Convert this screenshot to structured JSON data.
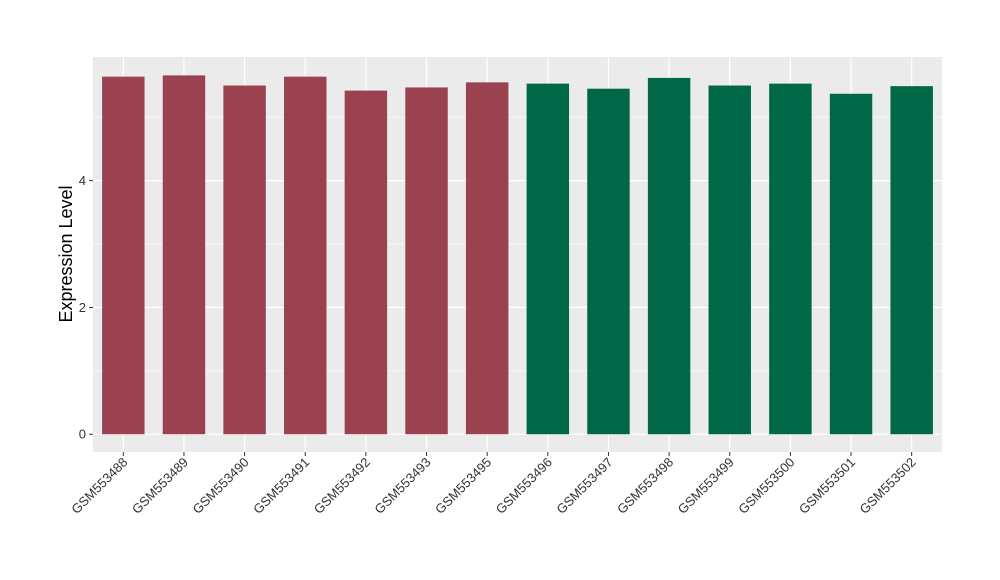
{
  "chart_data": {
    "type": "bar",
    "title": "",
    "xlabel": "",
    "ylabel": "Expression Level",
    "ylim": [
      -0.28,
      5.95
    ],
    "yticks": [
      0,
      2,
      4
    ],
    "grid": true,
    "legend": "none",
    "categories": [
      "GSM553488",
      "GSM553489",
      "GSM553490",
      "GSM553491",
      "GSM553492",
      "GSM553493",
      "GSM553495",
      "GSM553496",
      "GSM553497",
      "GSM553498",
      "GSM553499",
      "GSM553500",
      "GSM553501",
      "GSM553502"
    ],
    "values": [
      5.64,
      5.66,
      5.5,
      5.64,
      5.42,
      5.47,
      5.55,
      5.53,
      5.45,
      5.62,
      5.5,
      5.53,
      5.37,
      5.49
    ],
    "bar_colors": [
      "#9a4250",
      "#9a4250",
      "#9a4250",
      "#9a4250",
      "#9a4250",
      "#9a4250",
      "#9a4250",
      "#006847",
      "#006847",
      "#006847",
      "#006847",
      "#006847",
      "#006847",
      "#006847"
    ],
    "panel_background": "#ebebeb",
    "grid_color": "#ffffff"
  }
}
